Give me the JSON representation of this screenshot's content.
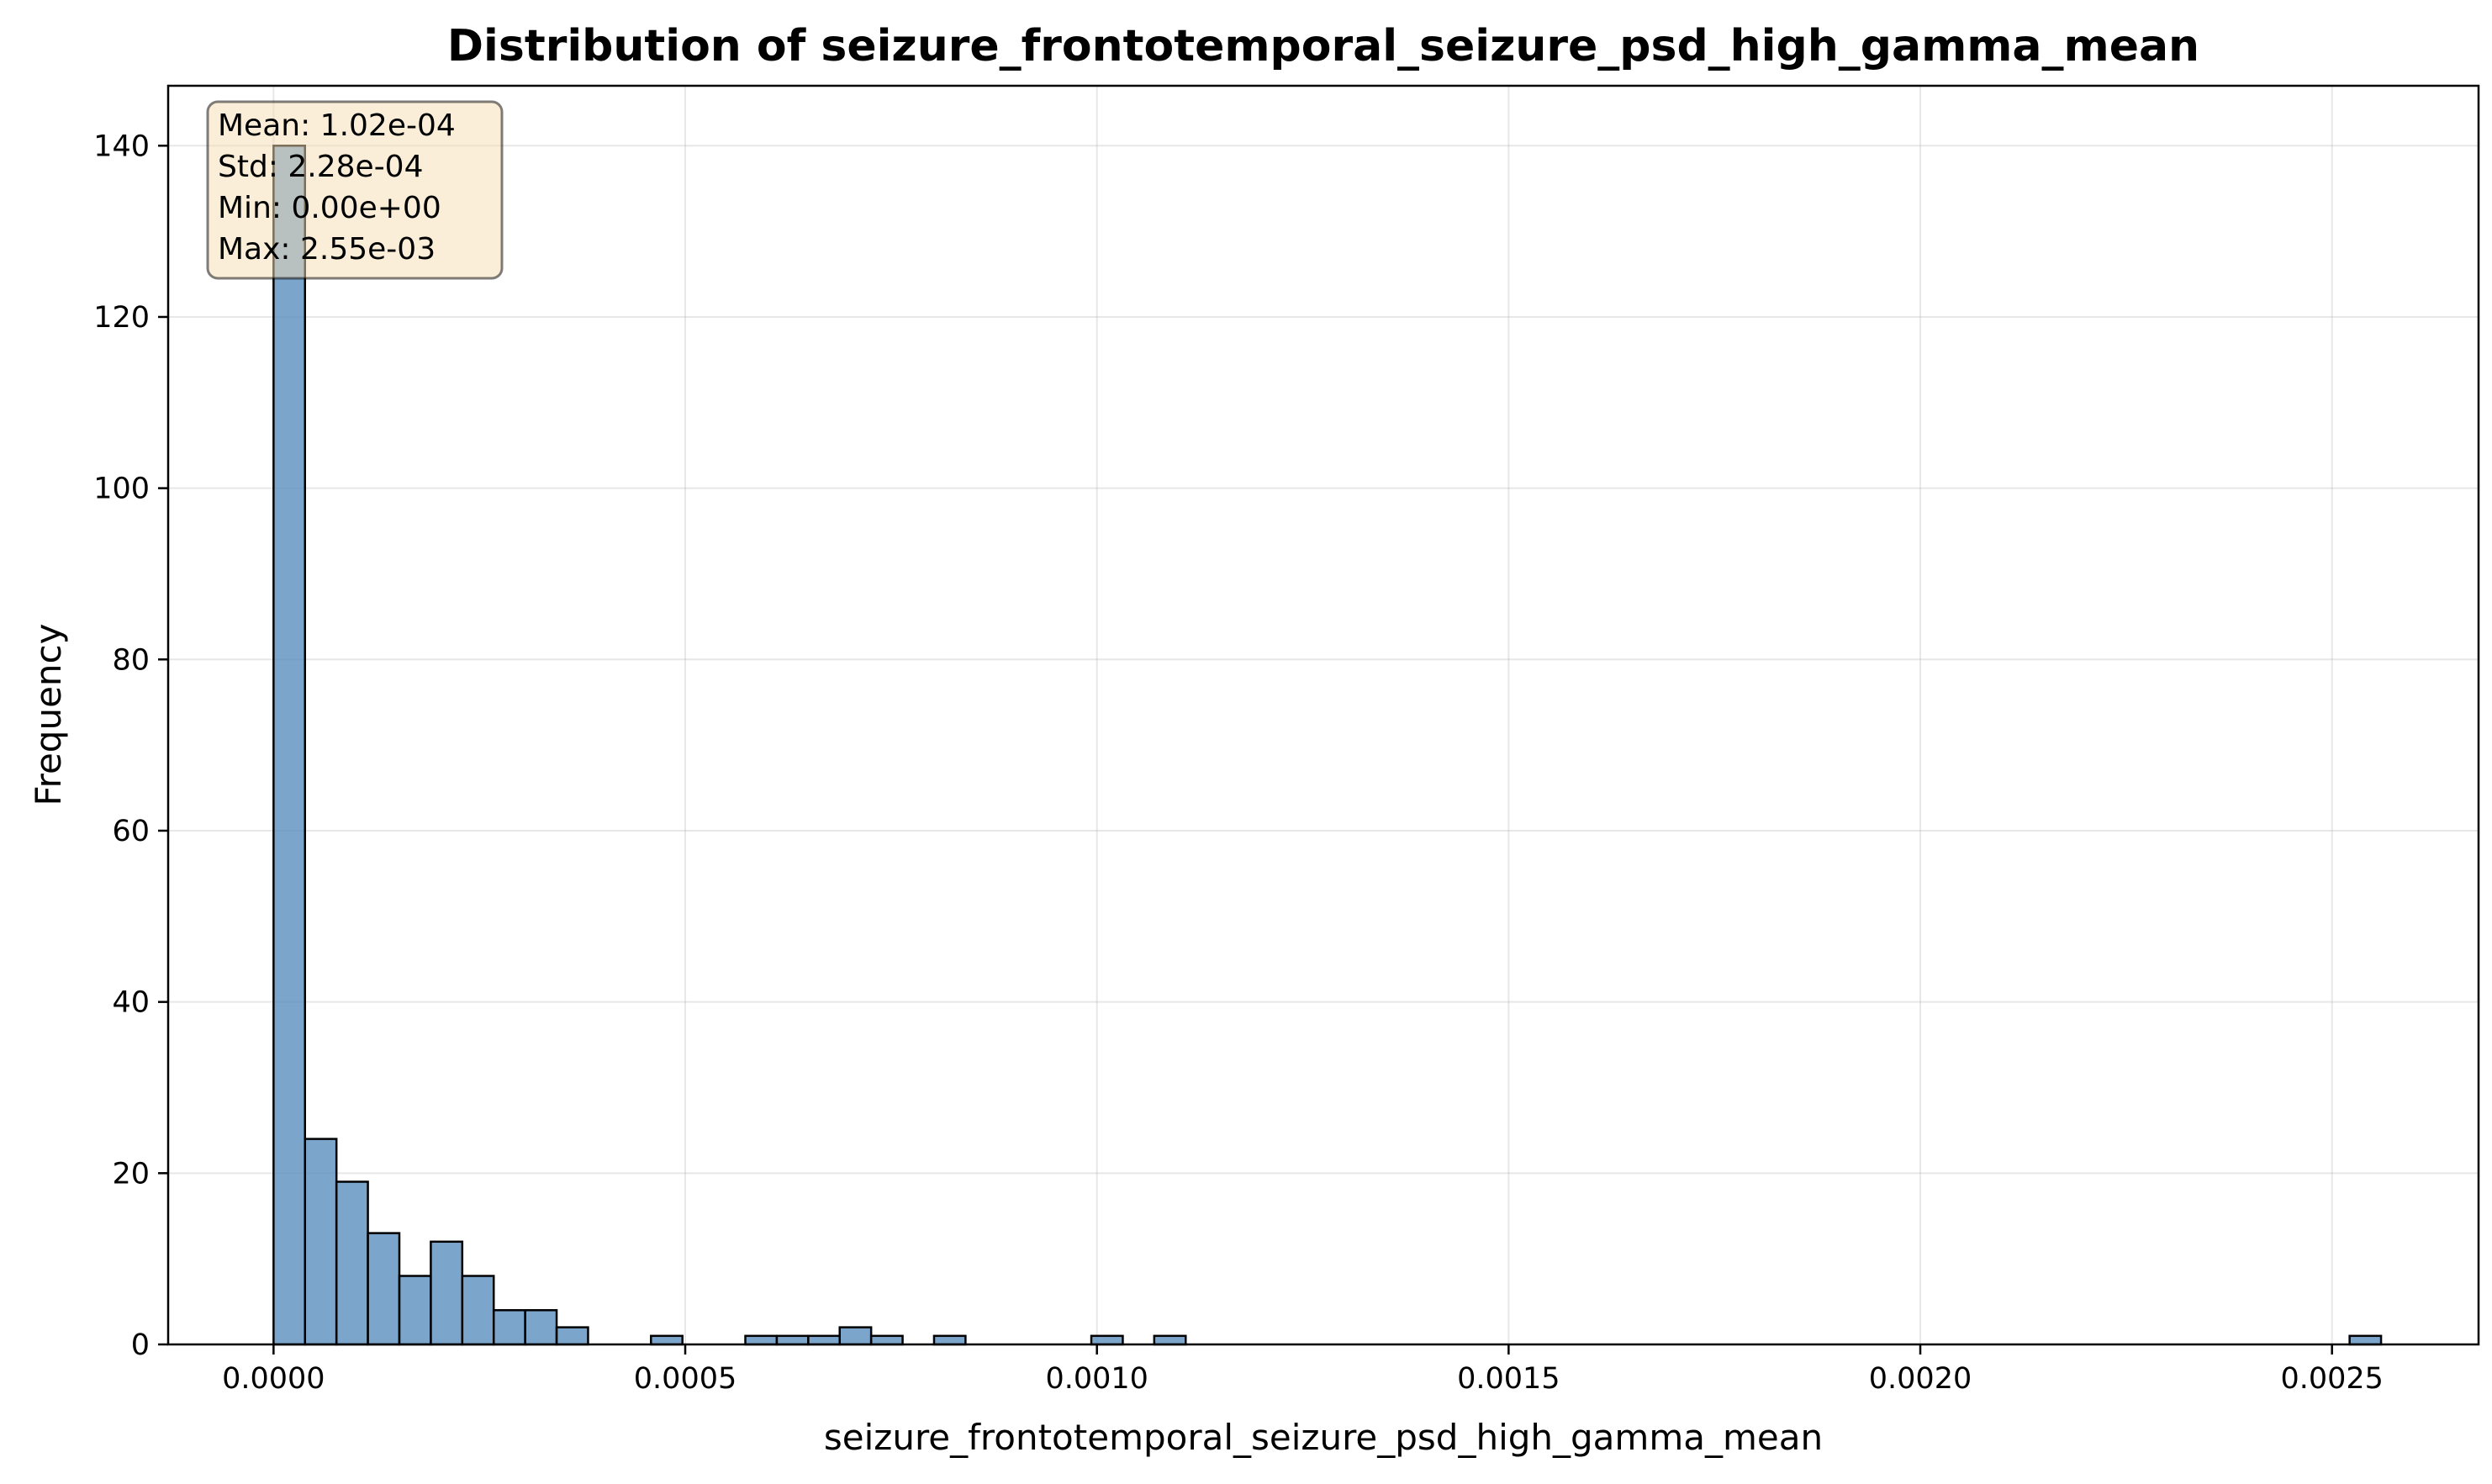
{
  "chart_data": {
    "type": "bar",
    "title": "Distribution of seizure_frontotemporal_seizure_psd_high_gamma_mean",
    "xlabel": "seizure_frontotemporal_seizure_psd_high_gamma_mean",
    "ylabel": "Frequency",
    "xlim": [
      -0.000128,
      0.002678
    ],
    "ylim": [
      0,
      147
    ],
    "x_ticks": [
      0,
      0.0005,
      0.001,
      0.0015,
      0.002,
      0.0025
    ],
    "x_tick_labels": [
      "0.0000",
      "0.0005",
      "0.0010",
      "0.0015",
      "0.0020",
      "0.0025"
    ],
    "y_ticks": [
      0,
      20,
      40,
      60,
      80,
      100,
      120,
      140
    ],
    "y_tick_labels": [
      "0",
      "20",
      "40",
      "60",
      "80",
      "100",
      "120",
      "140"
    ],
    "bin_width": 3.82e-05,
    "bin_starts": [
      0,
      3.82e-05,
      7.64e-05,
      0.0001146,
      0.0001528,
      0.000191,
      0.0002292,
      0.0002674,
      0.0003056,
      0.0003438,
      0.0004584,
      0.000573,
      0.0006112,
      0.0006494,
      0.0006876,
      0.0007258,
      0.0008022,
      0.0009932,
      0.0010696,
      0.0025214
    ],
    "values": [
      140,
      24,
      19,
      13,
      8,
      12,
      8,
      4,
      4,
      2,
      1,
      1,
      1,
      1,
      2,
      1,
      1,
      1,
      1,
      1
    ],
    "bar_color": "#5b8fbf",
    "edge_color": "#000000",
    "grid": true,
    "stats": {
      "lines": [
        "Mean: 1.02e-04",
        "Std: 2.28e-04",
        "Min: 0.00e+00",
        "Max: 2.55e-03"
      ],
      "placement": "top-left",
      "box_color": "#f5deb3"
    }
  }
}
